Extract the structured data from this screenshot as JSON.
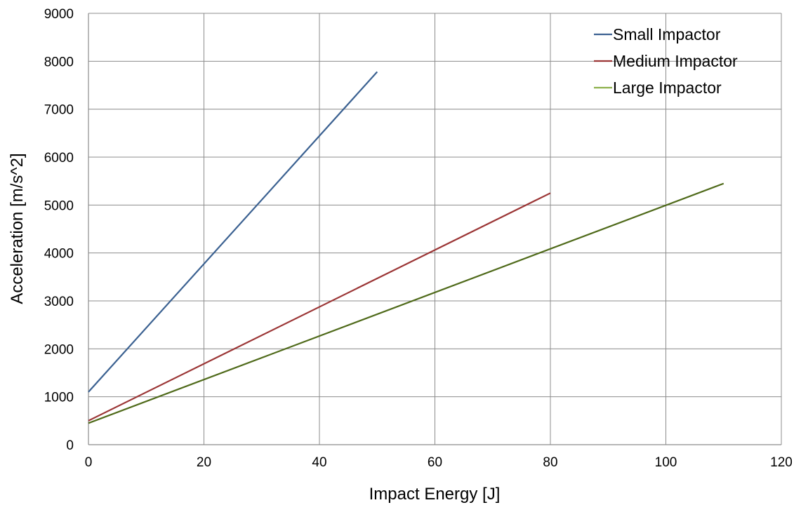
{
  "chart_data": {
    "type": "line",
    "title": "",
    "xlabel": "Impact Energy [J]",
    "ylabel": "Acceleration [m/s^2]",
    "xlim": [
      0,
      120
    ],
    "ylim": [
      0,
      9000
    ],
    "xticks": [
      "0",
      "20",
      "40",
      "60",
      "80",
      "100",
      "120"
    ],
    "yticks": [
      "0",
      "1000",
      "2000",
      "3000",
      "4000",
      "5000",
      "6000",
      "7000",
      "8000",
      "9000"
    ],
    "grid": true,
    "legend_position": "top-right",
    "series": [
      {
        "name": "Small Impactor",
        "color": "#3b6191",
        "x": [
          0,
          50
        ],
        "y": [
          1100,
          7780
        ]
      },
      {
        "name": "Medium Impactor",
        "color": "#9b3535",
        "x": [
          0,
          80
        ],
        "y": [
          500,
          5250
        ]
      },
      {
        "name": "Large Impactor",
        "color": "#4f6a1a",
        "legend_color": "#8db04a",
        "x": [
          0,
          110
        ],
        "y": [
          450,
          5450
        ]
      }
    ]
  }
}
